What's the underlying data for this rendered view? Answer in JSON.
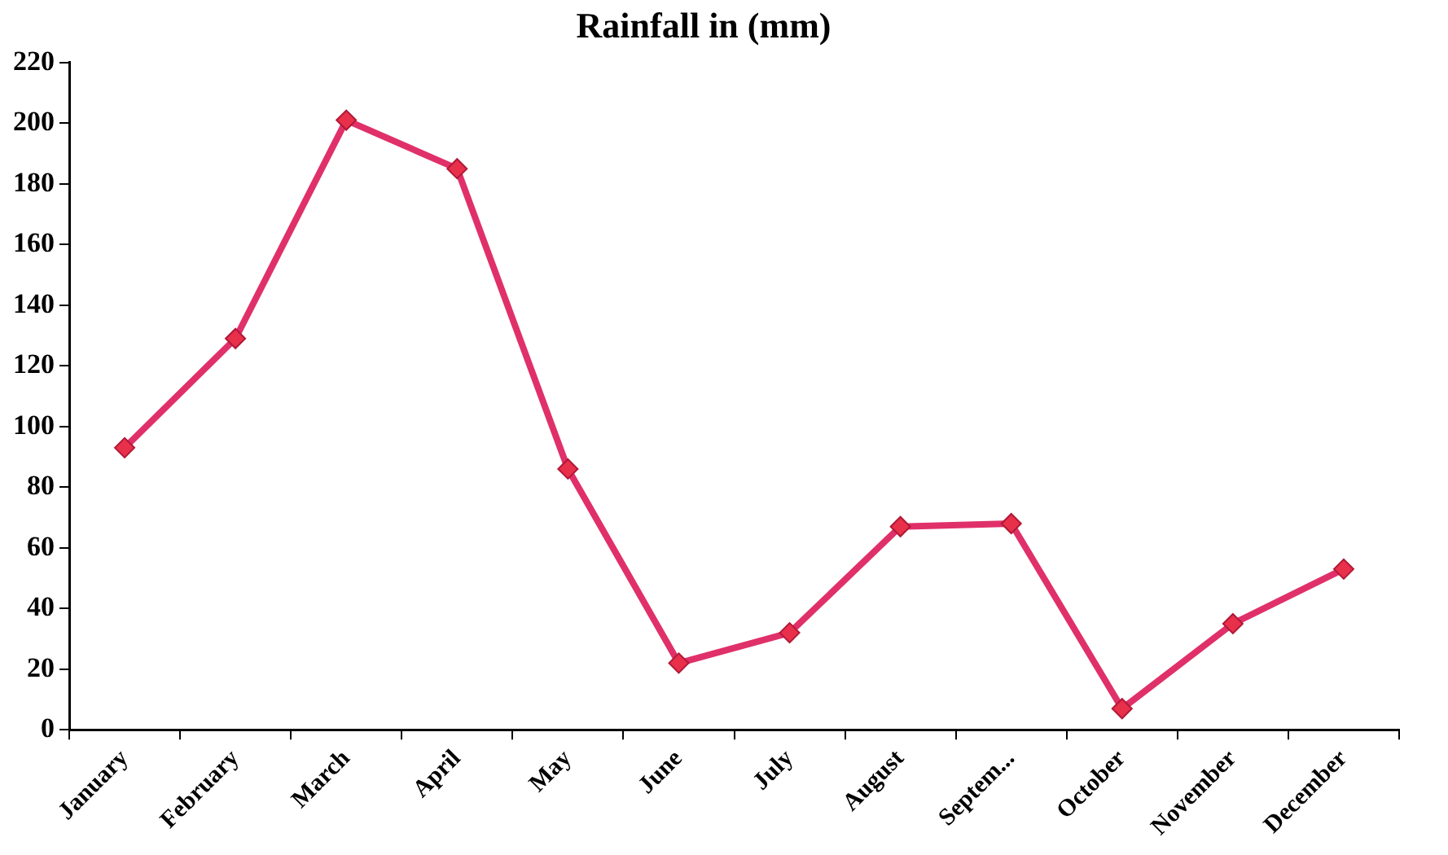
{
  "chart_data": {
    "type": "line",
    "title": "Rainfall in (mm)",
    "categories": [
      "January",
      "February",
      "March",
      "April",
      "May",
      "June",
      "July",
      "August",
      "Septem...",
      "October",
      "November",
      "December"
    ],
    "series": [
      {
        "color": "#e0306a",
        "values": [
          93,
          129,
          201,
          185,
          86,
          22,
          32,
          67,
          68,
          7,
          35,
          53
        ]
      }
    ],
    "ylim": [
      0,
      220
    ],
    "yticks": [
      0,
      20,
      40,
      60,
      80,
      100,
      120,
      140,
      160,
      180,
      200,
      220
    ],
    "grid": false,
    "legend": false,
    "marker": "diamond",
    "line_style": "solid"
  }
}
